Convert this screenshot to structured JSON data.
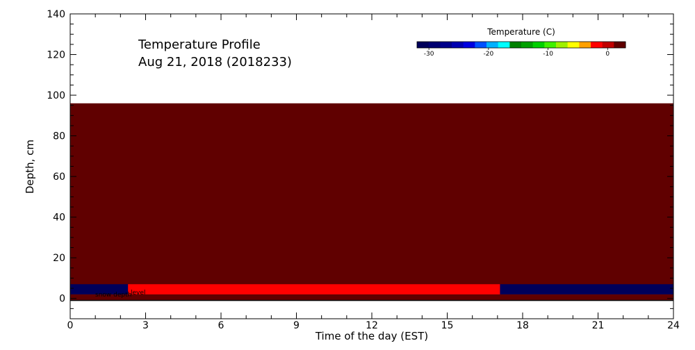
{
  "chart_data": {
    "type": "heatmap",
    "title": "Temperature Profile",
    "subtitle": "Aug 21, 2018 (2018233)",
    "xlabel": "Time of the day (EST)",
    "ylabel": "Depth, cm",
    "xlim": [
      0,
      24
    ],
    "ylim": [
      -10,
      140
    ],
    "x_ticks": [
      0,
      3,
      6,
      9,
      12,
      15,
      18,
      21,
      24
    ],
    "y_ticks": [
      0,
      20,
      40,
      60,
      80,
      100,
      120,
      140
    ],
    "grid": false,
    "cells": [
      {
        "x0": 0,
        "x1": 24,
        "y0": 2,
        "y1": 96,
        "temperature": 3,
        "color": "#600000"
      },
      {
        "x0": 0,
        "x1": 24,
        "y0": -1,
        "y1": 2,
        "temperature": 3,
        "color": "#600000"
      },
      {
        "x0": 0,
        "x1": 2.3,
        "y0": 2,
        "y1": 7,
        "temperature": -30,
        "color": "#00005a"
      },
      {
        "x0": 2.3,
        "x1": 17.1,
        "y0": 2,
        "y1": 7,
        "temperature": 1,
        "color": "#ff0000"
      },
      {
        "x0": 17.1,
        "x1": 24,
        "y0": 2,
        "y1": 7,
        "temperature": -30,
        "color": "#00005a"
      }
    ],
    "ground_level_y": -1,
    "annotation": "snow depth",
    "annotation_overlap": "level",
    "colorbar": {
      "title": "Temperature (C)",
      "min": -32,
      "max": 3,
      "ticks": [
        -30,
        -20,
        -10,
        0
      ],
      "colors": [
        "#00005a",
        "#000070",
        "#00008a",
        "#0000b0",
        "#0000e0",
        "#0050ff",
        "#00b0ff",
        "#00ffff",
        "#008000",
        "#00a000",
        "#00d000",
        "#40f000",
        "#a0f000",
        "#ffff00",
        "#ffa000",
        "#ff0000",
        "#c00000",
        "#600000"
      ]
    }
  }
}
